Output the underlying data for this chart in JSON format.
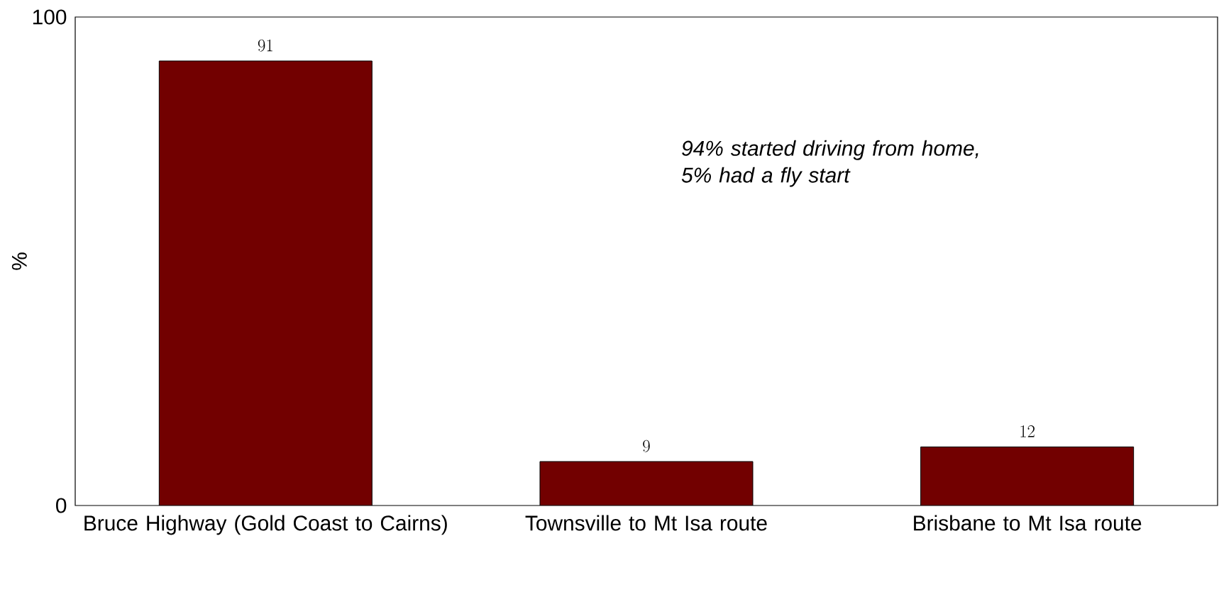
{
  "chart_data": {
    "type": "bar",
    "ylabel": "%",
    "categories": [
      "Bruce Highway (Gold Coast to Cairns)",
      "Townsville to Mt Isa route",
      "Brisbane to Mt Isa route"
    ],
    "values": [
      91,
      9,
      12
    ],
    "color": "#720000",
    "ylim": [
      0,
      100
    ],
    "yticks": [
      0,
      100
    ],
    "data_labels": true,
    "annotations": [
      "94% started driving from home, 5% had a fly start"
    ]
  }
}
